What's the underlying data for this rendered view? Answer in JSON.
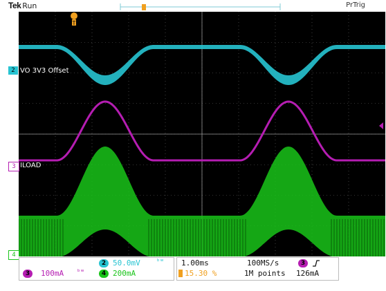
{
  "header": {
    "brand": "Tek",
    "run_state": "Run",
    "trigger_status": "PrTrig",
    "trigger_marker_icon": "trigger-position-icon"
  },
  "channels": {
    "ch2": {
      "number": "2",
      "label": "VO 3V3 Offset",
      "color": "#27c4d2"
    },
    "ch3": {
      "number": "3",
      "label": "ILOAD",
      "color": "#b51db2"
    },
    "ch4": {
      "number": "4",
      "label": "",
      "color": "#19c419"
    }
  },
  "readout": {
    "ch2_scale": "50.0mV",
    "ch3_scale": "100mA",
    "ch4_scale": "200mA",
    "bw_icon": "bandwidth-limit-icon",
    "timebase": "1.00ms",
    "trigger_pos": "15.30 %",
    "sample_rate": "100MS/s",
    "record_length": "1M points",
    "trigger_channel": "3",
    "trigger_slope_icon": "rising-edge-icon",
    "trigger_level": "126mA"
  },
  "colors": {
    "grid": "#6a6a6a",
    "background": "#000000",
    "ch2": "#27c4d2",
    "ch3": "#b51db2",
    "ch4": "#19c419",
    "trigger": "#f0a020"
  }
}
